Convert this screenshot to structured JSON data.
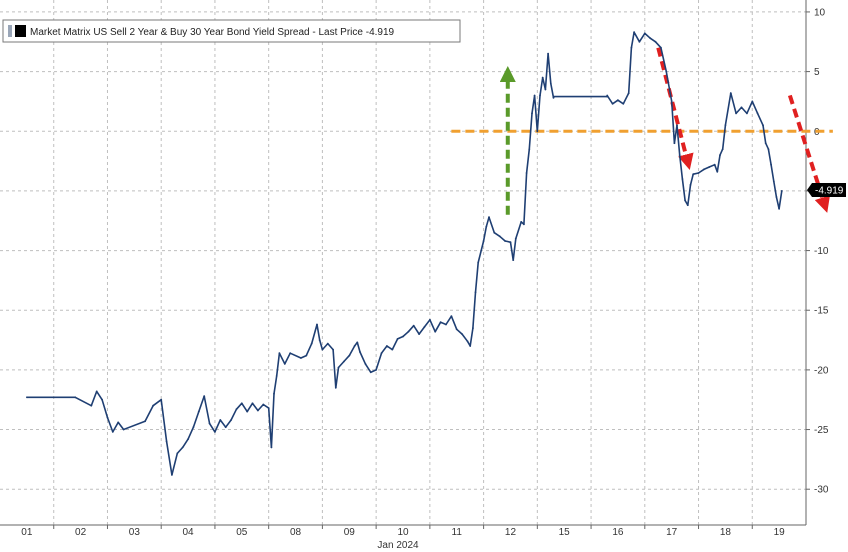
{
  "chart_data": {
    "type": "line",
    "legend": {
      "label": "Market Matrix US Sell 2 Year & Buy 30 Year Bond Yield Spread - Last Price -4.919",
      "placement": "top-left"
    },
    "x_labels": [
      "01",
      "02",
      "03",
      "04",
      "05",
      "08",
      "09",
      "10",
      "11",
      "12",
      "15",
      "16",
      "17",
      "18",
      "19"
    ],
    "x_month_label": "Jan 2024",
    "ylim": [
      -33,
      11
    ],
    "y_ticks": [
      10,
      5,
      0,
      -5,
      -10,
      -15,
      -20,
      -25,
      -30
    ],
    "y_tick_labels": [
      "10",
      "5",
      "0",
      "-5",
      "-10",
      "-15",
      "-20",
      "-25",
      "-30"
    ],
    "grid": true,
    "last_price": {
      "value": -4.919,
      "label": "-4.919"
    },
    "series": [
      {
        "color": "#1f3f73",
        "points": [
          [
            0.0,
            -22.3
          ],
          [
            0.9,
            -22.3
          ],
          [
            1.2,
            -23.0
          ],
          [
            1.3,
            -21.8
          ],
          [
            1.4,
            -22.5
          ],
          [
            1.5,
            -24.0
          ],
          [
            1.6,
            -25.2
          ],
          [
            1.7,
            -24.4
          ],
          [
            1.8,
            -25.0
          ],
          [
            2.2,
            -24.3
          ],
          [
            2.35,
            -23.0
          ],
          [
            2.5,
            -22.5
          ],
          [
            2.6,
            -26.0
          ],
          [
            2.7,
            -28.8
          ],
          [
            2.8,
            -27.0
          ],
          [
            2.9,
            -26.5
          ],
          [
            3.0,
            -25.8
          ],
          [
            3.1,
            -24.8
          ],
          [
            3.2,
            -23.5
          ],
          [
            3.3,
            -22.2
          ],
          [
            3.4,
            -24.5
          ],
          [
            3.5,
            -25.2
          ],
          [
            3.6,
            -24.2
          ],
          [
            3.7,
            -24.8
          ],
          [
            3.8,
            -24.2
          ],
          [
            3.9,
            -23.3
          ],
          [
            4.0,
            -22.8
          ],
          [
            4.1,
            -23.5
          ],
          [
            4.2,
            -22.8
          ],
          [
            4.3,
            -23.4
          ],
          [
            4.4,
            -22.9
          ],
          [
            4.5,
            -23.2
          ],
          [
            4.55,
            -26.5
          ],
          [
            4.6,
            -22.0
          ],
          [
            4.65,
            -20.5
          ],
          [
            4.7,
            -18.6
          ],
          [
            4.8,
            -19.5
          ],
          [
            4.9,
            -18.6
          ],
          [
            5.1,
            -19.0
          ],
          [
            5.2,
            -18.8
          ],
          [
            5.3,
            -17.8
          ],
          [
            5.4,
            -16.2
          ],
          [
            5.45,
            -17.5
          ],
          [
            5.5,
            -18.3
          ],
          [
            5.6,
            -17.8
          ],
          [
            5.7,
            -18.3
          ],
          [
            5.75,
            -21.5
          ],
          [
            5.8,
            -19.8
          ],
          [
            5.9,
            -19.3
          ],
          [
            6.0,
            -18.8
          ],
          [
            6.1,
            -18.0
          ],
          [
            6.15,
            -17.7
          ],
          [
            6.2,
            -18.5
          ],
          [
            6.3,
            -19.5
          ],
          [
            6.4,
            -20.2
          ],
          [
            6.5,
            -20.0
          ],
          [
            6.6,
            -18.6
          ],
          [
            6.7,
            -18.0
          ],
          [
            6.8,
            -18.3
          ],
          [
            6.9,
            -17.4
          ],
          [
            7.0,
            -17.2
          ],
          [
            7.1,
            -16.8
          ],
          [
            7.2,
            -16.3
          ],
          [
            7.3,
            -17.0
          ],
          [
            7.4,
            -16.4
          ],
          [
            7.5,
            -15.8
          ],
          [
            7.6,
            -16.8
          ],
          [
            7.7,
            -16.0
          ],
          [
            7.8,
            -16.2
          ],
          [
            7.9,
            -15.5
          ],
          [
            8.0,
            -16.6
          ],
          [
            8.1,
            -17.0
          ],
          [
            8.2,
            -17.6
          ],
          [
            8.25,
            -18.0
          ],
          [
            8.3,
            -16.5
          ],
          [
            8.35,
            -13.5
          ],
          [
            8.4,
            -11.0
          ],
          [
            8.5,
            -9.2
          ],
          [
            8.55,
            -8.0
          ],
          [
            8.6,
            -7.2
          ],
          [
            8.7,
            -8.5
          ],
          [
            8.8,
            -8.8
          ],
          [
            8.9,
            -9.2
          ],
          [
            9.0,
            -9.3
          ],
          [
            9.05,
            -10.8
          ],
          [
            9.1,
            -9.0
          ],
          [
            9.2,
            -7.6
          ],
          [
            9.25,
            -7.8
          ],
          [
            9.3,
            -3.5
          ],
          [
            9.35,
            -1.5
          ],
          [
            9.4,
            1.5
          ],
          [
            9.45,
            3.0
          ],
          [
            9.5,
            0.0
          ],
          [
            9.55,
            3.0
          ],
          [
            9.6,
            4.5
          ],
          [
            9.65,
            3.5
          ],
          [
            9.7,
            6.5
          ],
          [
            9.75,
            4.0
          ],
          [
            9.8,
            2.8
          ],
          [
            9.8,
            2.9
          ],
          [
            10.8,
            2.9
          ],
          [
            10.8,
            3.0
          ],
          [
            10.9,
            2.3
          ],
          [
            11.0,
            2.6
          ],
          [
            11.1,
            2.3
          ],
          [
            11.2,
            3.2
          ],
          [
            11.25,
            7.0
          ],
          [
            11.3,
            8.3
          ],
          [
            11.4,
            7.5
          ],
          [
            11.5,
            8.2
          ],
          [
            11.6,
            7.8
          ],
          [
            11.7,
            7.5
          ],
          [
            11.8,
            7.0
          ],
          [
            11.9,
            5.0
          ],
          [
            12.0,
            2.5
          ],
          [
            12.05,
            -1.0
          ],
          [
            12.1,
            0.5
          ],
          [
            12.15,
            -2.0
          ],
          [
            12.2,
            -4.0
          ],
          [
            12.25,
            -5.8
          ],
          [
            12.3,
            -6.2
          ],
          [
            12.35,
            -4.5
          ],
          [
            12.4,
            -3.6
          ],
          [
            12.5,
            -3.5
          ],
          [
            12.6,
            -3.2
          ],
          [
            12.7,
            -3.0
          ],
          [
            12.8,
            -2.8
          ],
          [
            12.85,
            -3.4
          ],
          [
            12.9,
            -2.0
          ],
          [
            12.95,
            -1.5
          ],
          [
            13.0,
            0.5
          ],
          [
            13.1,
            3.2
          ],
          [
            13.2,
            1.5
          ],
          [
            13.3,
            2.0
          ],
          [
            13.4,
            1.5
          ],
          [
            13.5,
            2.5
          ],
          [
            13.6,
            1.5
          ],
          [
            13.7,
            0.5
          ],
          [
            13.75,
            -1.0
          ],
          [
            13.8,
            -1.5
          ],
          [
            13.85,
            -2.8
          ],
          [
            13.9,
            -4.2
          ],
          [
            13.95,
            -5.5
          ],
          [
            14.0,
            -6.5
          ],
          [
            14.05,
            -5.0
          ]
        ]
      }
    ],
    "annotations": [
      {
        "type": "horizontal-line",
        "style": "dashed",
        "color": "#f0a030",
        "y": 0,
        "x_start": 7.9,
        "x_end": 15.0
      },
      {
        "type": "arrow",
        "style": "dashed",
        "color": "#5a9a2a",
        "direction": "up",
        "from": [
          8.95,
          -7.0
        ],
        "to": [
          8.95,
          4.8
        ]
      },
      {
        "type": "arrow",
        "style": "dashed",
        "color": "#e02020",
        "direction": "down",
        "from": [
          11.75,
          7.0
        ],
        "to": [
          12.3,
          -2.6
        ]
      },
      {
        "type": "arrow",
        "style": "dashed",
        "color": "#e02020",
        "direction": "down",
        "from": [
          14.2,
          3.0
        ],
        "to": [
          14.85,
          -6.2
        ]
      }
    ]
  }
}
